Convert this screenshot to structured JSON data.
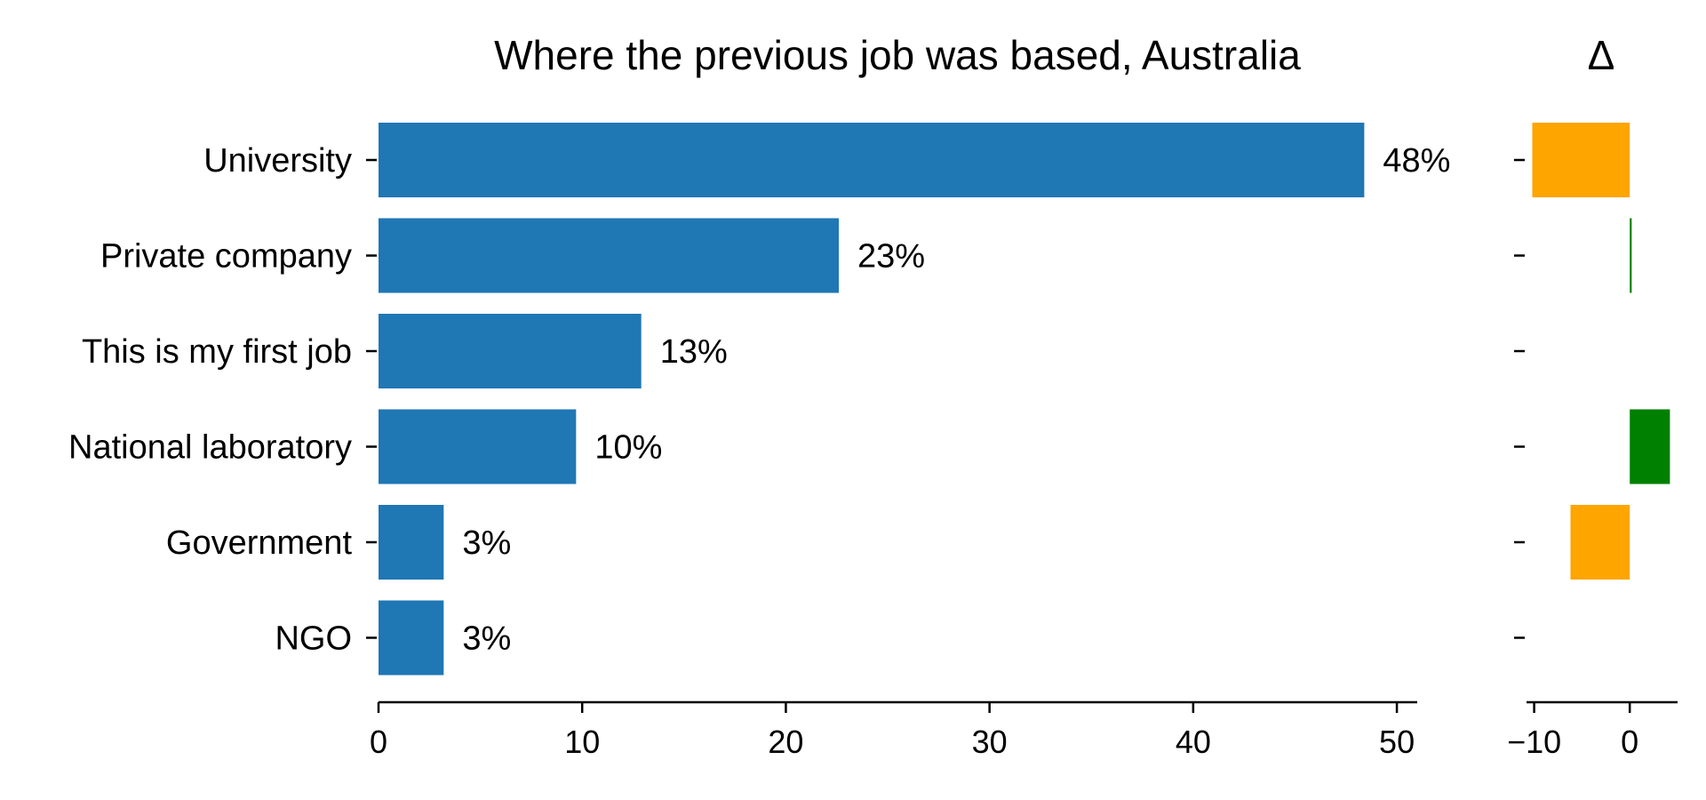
{
  "chart_data": [
    {
      "type": "bar",
      "orientation": "horizontal",
      "title": "Where the previous job was based, Australia",
      "categories": [
        "University",
        "Private company",
        "This is my first job",
        "National laboratory",
        "Government",
        "NGO"
      ],
      "values": [
        48.4,
        22.6,
        12.9,
        9.7,
        3.2,
        3.2
      ],
      "data_labels": [
        "48%",
        "23%",
        "13%",
        "10%",
        "3%",
        "3%"
      ],
      "xlim": [
        0,
        51
      ],
      "xticks": [
        0,
        10,
        20,
        30,
        40,
        50
      ],
      "xlabel": "",
      "ylabel": "",
      "color": "#1f77b4",
      "grid": false
    },
    {
      "type": "bar",
      "orientation": "horizontal",
      "title": "Δ",
      "categories": [
        "University",
        "Private company",
        "This is my first job",
        "National laboratory",
        "Government",
        "NGO"
      ],
      "values": [
        -10.2,
        0.2,
        0,
        4.2,
        -6.2,
        0
      ],
      "xlim": [
        -10.8,
        5
      ],
      "xticks": [
        -10,
        0
      ],
      "xtick_labels": [
        "−10",
        "0"
      ],
      "positive_color": "#008000",
      "negative_color": "#ffa500",
      "grid": false
    }
  ]
}
